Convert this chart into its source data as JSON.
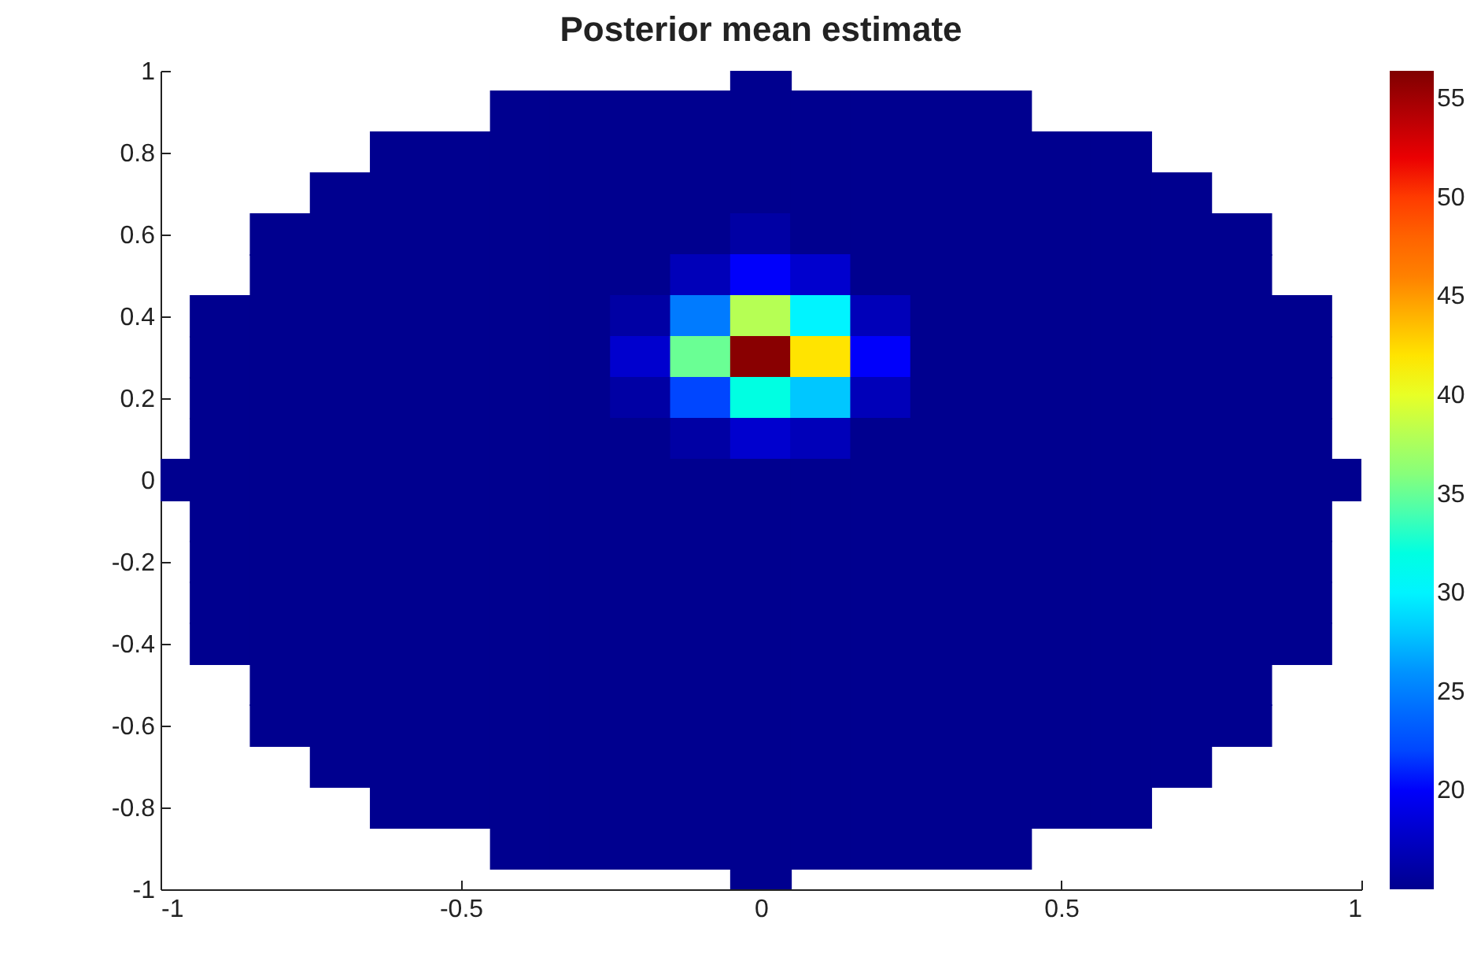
{
  "chart_data": {
    "type": "scatter",
    "title": "Posterior mean estimate",
    "marker": "square",
    "xlim": [
      -1,
      1
    ],
    "ylim": [
      -1,
      1
    ],
    "xticks": [
      -1,
      -0.5,
      0,
      0.5,
      1
    ],
    "yticks": [
      -1,
      -0.8,
      -0.6,
      -0.4,
      -0.2,
      0,
      0.2,
      0.4,
      0.6,
      0.8,
      1
    ],
    "clim": [
      15,
      56.4
    ],
    "cticks": [
      20,
      25,
      30,
      35,
      40,
      45,
      50,
      55
    ],
    "x": [
      0,
      -0.4,
      -0.3,
      -0.2,
      -0.1,
      0,
      0.1,
      0.2,
      0.3,
      0.4,
      -0.6,
      -0.5,
      -0.4,
      -0.3,
      -0.2,
      -0.1,
      0,
      0.1,
      0.2,
      0.3,
      0.4,
      0.5,
      0.6,
      -0.7,
      -0.6,
      -0.5,
      -0.4,
      -0.3,
      -0.2,
      -0.1,
      0,
      0.1,
      0.2,
      0.3,
      0.4,
      0.5,
      0.6,
      0.7,
      -0.8,
      -0.7,
      -0.6,
      -0.5,
      -0.4,
      -0.3,
      -0.2,
      -0.1,
      0,
      0.1,
      0.2,
      0.3,
      0.4,
      0.5,
      0.6,
      0.7,
      0.8,
      -0.8,
      -0.7,
      -0.6,
      -0.5,
      -0.4,
      -0.3,
      -0.2,
      -0.1,
      0,
      0.1,
      0.2,
      0.3,
      0.4,
      0.5,
      0.6,
      0.7,
      0.8,
      -0.9,
      -0.8,
      -0.7,
      -0.6,
      -0.5,
      -0.4,
      -0.3,
      -0.2,
      -0.1,
      0,
      0.1,
      0.2,
      0.3,
      0.4,
      0.5,
      0.6,
      0.7,
      0.8,
      0.9,
      -0.9,
      -0.8,
      -0.7,
      -0.6,
      -0.5,
      -0.4,
      -0.3,
      -0.2,
      -0.1,
      0,
      0.1,
      0.2,
      0.3,
      0.4,
      0.5,
      0.6,
      0.7,
      0.8,
      0.9,
      -0.9,
      -0.8,
      -0.7,
      -0.6,
      -0.5,
      -0.4,
      -0.3,
      -0.2,
      -0.1,
      0,
      0.1,
      0.2,
      0.3,
      0.4,
      0.5,
      0.6,
      0.7,
      0.8,
      0.9,
      -0.9,
      -0.8,
      -0.7,
      -0.6,
      -0.5,
      -0.4,
      -0.3,
      -0.2,
      -0.1,
      0,
      0.1,
      0.2,
      0.3,
      0.4,
      0.5,
      0.6,
      0.7,
      0.8,
      0.9,
      -1,
      -0.9,
      -0.8,
      -0.7,
      -0.6,
      -0.5,
      -0.4,
      -0.3,
      -0.2,
      -0.1,
      0,
      0.1,
      0.2,
      0.3,
      0.4,
      0.5,
      0.6,
      0.7,
      0.8,
      0.9,
      1,
      -0.9,
      -0.8,
      -0.7,
      -0.6,
      -0.5,
      -0.4,
      -0.3,
      -0.2,
      -0.1,
      0,
      0.1,
      0.2,
      0.3,
      0.4,
      0.5,
      0.6,
      0.7,
      0.8,
      0.9,
      -0.9,
      -0.8,
      -0.7,
      -0.6,
      -0.5,
      -0.4,
      -0.3,
      -0.2,
      -0.1,
      0,
      0.1,
      0.2,
      0.3,
      0.4,
      0.5,
      0.6,
      0.7,
      0.8,
      0.9,
      -0.9,
      -0.8,
      -0.7,
      -0.6,
      -0.5,
      -0.4,
      -0.3,
      -0.2,
      -0.1,
      0,
      0.1,
      0.2,
      0.3,
      0.4,
      0.5,
      0.6,
      0.7,
      0.8,
      0.9,
      -0.9,
      -0.8,
      -0.7,
      -0.6,
      -0.5,
      -0.4,
      -0.3,
      -0.2,
      -0.1,
      0,
      0.1,
      0.2,
      0.3,
      0.4,
      0.5,
      0.6,
      0.7,
      0.8,
      0.9,
      -0.8,
      -0.7,
      -0.6,
      -0.5,
      -0.4,
      -0.3,
      -0.2,
      -0.1,
      0,
      0.1,
      0.2,
      0.3,
      0.4,
      0.5,
      0.6,
      0.7,
      0.8,
      -0.8,
      -0.7,
      -0.6,
      -0.5,
      -0.4,
      -0.3,
      -0.2,
      -0.1,
      0,
      0.1,
      0.2,
      0.3,
      0.4,
      0.5,
      0.6,
      0.7,
      0.8,
      -0.7,
      -0.6,
      -0.5,
      -0.4,
      -0.3,
      -0.2,
      -0.1,
      0,
      0.1,
      0.2,
      0.3,
      0.4,
      0.5,
      0.6,
      0.7,
      -0.6,
      -0.5,
      -0.4,
      -0.3,
      -0.2,
      -0.1,
      0,
      0.1,
      0.2,
      0.3,
      0.4,
      0.5,
      0.6,
      -0.4,
      -0.3,
      -0.2,
      -0.1,
      0,
      0.1,
      0.2,
      0.3,
      0.4,
      0
    ],
    "values": [
      1,
      0.9,
      0.9,
      0.9,
      0.9,
      0.9,
      0.9,
      0.9,
      0.9,
      0.9,
      0.8,
      0.8,
      0.8,
      0.8,
      0.8,
      0.8,
      0.8,
      0.8,
      0.8,
      0.8,
      0.8,
      0.8,
      0.8,
      0.7,
      0.7,
      0.7,
      0.7,
      0.7,
      0.7,
      0.7,
      0.7,
      0.7,
      0.7,
      0.7,
      0.7,
      0.7,
      0.7,
      0.7,
      0.6,
      0.6,
      0.6,
      0.6,
      0.6,
      0.6,
      0.6,
      0.6,
      0.6,
      0.6,
      0.6,
      0.6,
      0.6,
      0.6,
      0.6,
      0.6,
      0.6,
      0.5,
      0.5,
      0.5,
      0.5,
      0.5,
      0.5,
      0.5,
      0.5,
      0.5,
      0.5,
      0.5,
      0.5,
      0.5,
      0.5,
      0.5,
      0.5,
      0.5,
      0.4,
      0.4,
      0.4,
      0.4,
      0.4,
      0.4,
      0.4,
      0.4,
      0.4,
      0.4,
      0.4,
      0.4,
      0.4,
      0.4,
      0.4,
      0.4,
      0.4,
      0.4,
      0.4,
      0.3,
      0.3,
      0.3,
      0.3,
      0.3,
      0.3,
      0.3,
      0.3,
      0.3,
      0.3,
      0.3,
      0.3,
      0.3,
      0.3,
      0.3,
      0.3,
      0.3,
      0.3,
      0.3,
      0.2,
      0.2,
      0.2,
      0.2,
      0.2,
      0.2,
      0.2,
      0.2,
      0.2,
      0.2,
      0.2,
      0.2,
      0.2,
      0.2,
      0.2,
      0.2,
      0.2,
      0.2,
      0.2,
      0.1,
      0.1,
      0.1,
      0.1,
      0.1,
      0.1,
      0.1,
      0.1,
      0.1,
      0.1,
      0.1,
      0.1,
      0.1,
      0.1,
      0.1,
      0.1,
      0.1,
      0.1,
      0.1,
      0,
      0,
      0,
      0,
      0,
      0,
      0,
      0,
      0,
      0,
      0,
      0,
      0,
      0,
      0,
      0,
      0,
      0,
      0,
      0,
      0,
      -0.1,
      -0.1,
      -0.1,
      -0.1,
      -0.1,
      -0.1,
      -0.1,
      -0.1,
      -0.1,
      -0.1,
      -0.1,
      -0.1,
      -0.1,
      -0.1,
      -0.1,
      -0.1,
      -0.1,
      -0.1,
      -0.1,
      -0.2,
      -0.2,
      -0.2,
      -0.2,
      -0.2,
      -0.2,
      -0.2,
      -0.2,
      -0.2,
      -0.2,
      -0.2,
      -0.2,
      -0.2,
      -0.2,
      -0.2,
      -0.2,
      -0.2,
      -0.2,
      -0.2,
      -0.3,
      -0.3,
      -0.3,
      -0.3,
      -0.3,
      -0.3,
      -0.3,
      -0.3,
      -0.3,
      -0.3,
      -0.3,
      -0.3,
      -0.3,
      -0.3,
      -0.3,
      -0.3,
      -0.3,
      -0.3,
      -0.3,
      -0.4,
      -0.4,
      -0.4,
      -0.4,
      -0.4,
      -0.4,
      -0.4,
      -0.4,
      -0.4,
      -0.4,
      -0.4,
      -0.4,
      -0.4,
      -0.4,
      -0.4,
      -0.4,
      -0.4,
      -0.4,
      -0.4,
      -0.5,
      -0.5,
      -0.5,
      -0.5,
      -0.5,
      -0.5,
      -0.5,
      -0.5,
      -0.5,
      -0.5,
      -0.5,
      -0.5,
      -0.5,
      -0.5,
      -0.5,
      -0.5,
      -0.5,
      -0.6,
      -0.6,
      -0.6,
      -0.6,
      -0.6,
      -0.6,
      -0.6,
      -0.6,
      -0.6,
      -0.6,
      -0.6,
      -0.6,
      -0.6,
      -0.6,
      -0.6,
      -0.6,
      -0.6,
      -0.7,
      -0.7,
      -0.7,
      -0.7,
      -0.7,
      -0.7,
      -0.7,
      -0.7,
      -0.7,
      -0.7,
      -0.7,
      -0.7,
      -0.7,
      -0.7,
      -0.7,
      -0.8,
      -0.8,
      -0.8,
      -0.8,
      -0.8,
      -0.8,
      -0.8,
      -0.8,
      -0.8,
      -0.8,
      -0.8,
      -0.8,
      -0.8,
      -0.9,
      -0.9,
      -0.9,
      -0.9,
      -0.9,
      -0.9,
      -0.9,
      -0.9,
      -0.9,
      -1
    ],
    "cvalues": [
      15,
      15,
      15,
      15,
      15,
      15,
      15,
      15,
      15,
      15,
      15,
      15,
      15,
      15,
      15,
      15,
      15,
      15,
      15,
      15,
      15,
      15,
      15,
      15,
      15,
      15,
      15,
      15,
      15,
      15,
      15,
      15,
      15,
      15,
      15,
      15,
      15,
      15,
      15,
      15,
      15,
      15,
      15,
      15,
      15,
      15,
      16,
      15,
      15,
      15,
      15,
      15,
      15,
      15,
      15,
      15,
      15,
      15,
      15,
      15,
      15,
      15,
      17,
      20,
      18,
      15,
      15,
      15,
      15,
      15,
      15,
      15,
      15,
      15,
      15,
      15,
      15,
      15,
      15,
      16,
      25,
      38,
      30,
      17,
      15,
      15,
      15,
      15,
      15,
      15,
      15,
      15,
      15,
      15,
      15,
      15,
      15,
      15,
      18,
      35,
      56,
      42,
      20,
      15,
      15,
      15,
      15,
      15,
      15,
      15,
      15,
      15,
      15,
      15,
      15,
      15,
      15,
      16,
      22,
      32,
      28,
      17,
      15,
      15,
      15,
      15,
      15,
      15,
      15,
      15,
      15,
      15,
      15,
      15,
      15,
      15,
      15,
      16,
      18,
      17,
      15,
      15,
      15,
      15,
      15,
      15,
      15,
      15,
      15,
      15,
      15,
      15,
      15,
      15,
      15,
      15,
      15,
      15,
      15,
      15,
      15,
      15,
      15,
      15,
      15,
      15,
      15,
      15,
      15,
      15,
      15,
      15,
      15,
      15,
      15,
      15,
      15,
      15,
      15,
      15,
      15,
      15,
      15,
      15,
      15,
      15,
      15,
      15,
      15,
      15,
      15,
      15,
      15,
      15,
      15,
      15,
      15,
      15,
      15,
      15,
      15,
      15,
      15,
      15,
      15,
      15,
      15,
      15,
      15,
      15,
      15,
      15,
      15,
      15,
      15,
      15,
      15,
      15,
      15,
      15,
      15,
      15,
      15,
      15,
      15,
      15,
      15,
      15,
      15,
      15,
      15,
      15,
      15,
      15,
      15,
      15,
      15,
      15,
      15,
      15,
      15,
      15,
      15,
      15,
      15,
      15,
      15,
      15,
      15,
      15,
      15,
      15,
      15,
      15,
      15,
      15,
      15,
      15,
      15,
      15,
      15,
      15,
      15,
      15,
      15,
      15,
      15,
      15,
      15,
      15,
      15,
      15,
      15,
      15,
      15,
      15,
      15,
      15,
      15,
      15,
      15,
      15,
      15,
      15,
      15,
      15,
      15,
      15,
      15,
      15,
      15,
      15,
      15,
      15,
      15,
      15,
      15,
      15,
      15,
      15,
      15,
      15,
      15,
      15,
      15,
      15,
      15,
      15,
      15,
      15,
      15,
      15,
      15,
      15,
      15,
      15,
      15
    ]
  }
}
